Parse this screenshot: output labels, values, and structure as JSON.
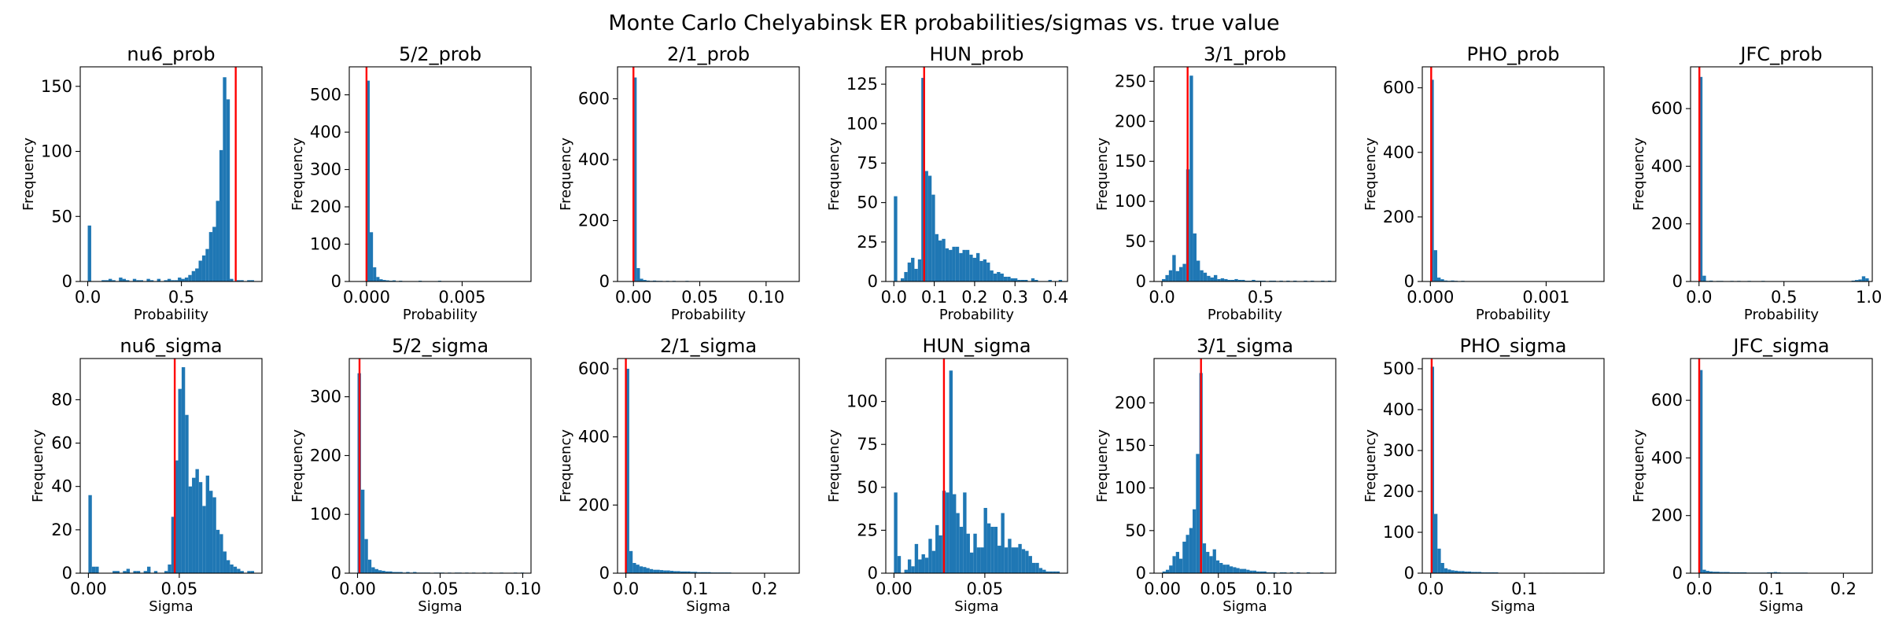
{
  "figure": {
    "title": "Monte Carlo Chelyabinsk ER probabilities/sigmas vs. true value"
  },
  "style": {
    "bar_color": "#1f77b4",
    "truth_line_color": "#ff0000"
  },
  "chart_data": [
    {
      "type": "bar",
      "title": "nu6_prob",
      "xlabel": "Probability",
      "ylabel": "Frequency",
      "xlim": [
        -0.04,
        0.93
      ],
      "ylim": [
        0,
        165
      ],
      "xticks": [
        0.0,
        0.5
      ],
      "yticks": [
        0,
        50,
        100,
        150
      ],
      "true_value": 0.79,
      "bin_start": 0.0,
      "bin_width": 0.0185,
      "counts": [
        43,
        0,
        0,
        0,
        1,
        1,
        2,
        1,
        0,
        3,
        2,
        1,
        0,
        2,
        1,
        1,
        0,
        2,
        1,
        0,
        2,
        0,
        1,
        2,
        1,
        1,
        3,
        2,
        3,
        5,
        8,
        10,
        16,
        20,
        25,
        38,
        42,
        62,
        101,
        157,
        140,
        2,
        0,
        1,
        1,
        0,
        1,
        1
      ]
    },
    {
      "type": "bar",
      "title": "5/2_prob",
      "xlabel": "Probability",
      "ylabel": "Frequency",
      "xlim": [
        -0.0009,
        0.0086
      ],
      "ylim": [
        0,
        575
      ],
      "xticks": [
        0.0,
        0.005
      ],
      "yticks": [
        0,
        100,
        200,
        300,
        400,
        500
      ],
      "true_value": 0.0,
      "bin_start": 0.0,
      "bin_width": 0.00017,
      "counts": [
        538,
        132,
        38,
        12,
        6,
        4,
        3,
        2,
        3,
        1,
        2,
        1,
        1,
        0,
        1,
        1,
        2,
        1,
        0,
        1,
        1,
        0,
        2,
        1,
        0,
        1,
        1,
        0,
        1,
        0,
        1,
        1,
        0,
        1,
        1,
        0,
        0,
        1,
        0,
        1,
        0,
        0,
        1,
        0,
        0,
        1,
        0,
        0,
        1
      ]
    },
    {
      "type": "bar",
      "title": "2/1_prob",
      "xlabel": "Probability",
      "ylabel": "Frequency",
      "xlim": [
        -0.012,
        0.125
      ],
      "ylim": [
        0,
        705
      ],
      "xticks": [
        0.0,
        0.05,
        0.1
      ],
      "yticks": [
        0,
        200,
        400,
        600
      ],
      "true_value": 0.0,
      "bin_start": 0.0,
      "bin_width": 0.00245,
      "counts": [
        670,
        44,
        9,
        5,
        3,
        2,
        3,
        2,
        2,
        1,
        2,
        1,
        2,
        1,
        1,
        1,
        2,
        1,
        0,
        1,
        1,
        1,
        0,
        1,
        1,
        1,
        0,
        1,
        1,
        0,
        1,
        0,
        1,
        1,
        0,
        0,
        1,
        0,
        1,
        0,
        0,
        1,
        0,
        0,
        1,
        0,
        0,
        0,
        1
      ]
    },
    {
      "type": "bar",
      "title": "HUN_prob",
      "xlabel": "Probability",
      "ylabel": "Frequency",
      "xlim": [
        -0.02,
        0.43
      ],
      "ylim": [
        0,
        136
      ],
      "xticks": [
        0.0,
        0.1,
        0.2,
        0.3,
        0.4
      ],
      "yticks": [
        0,
        25,
        50,
        75,
        100,
        125
      ],
      "true_value": 0.075,
      "bin_start": 0.0,
      "bin_width": 0.0085,
      "counts": [
        54,
        0,
        2,
        6,
        12,
        15,
        8,
        14,
        129,
        70,
        67,
        55,
        30,
        26,
        27,
        21,
        20,
        22,
        22,
        18,
        20,
        20,
        17,
        15,
        18,
        13,
        14,
        12,
        7,
        5,
        6,
        5,
        3,
        3,
        2,
        2,
        1,
        1,
        1,
        0,
        2,
        1,
        0,
        0,
        0,
        1,
        0,
        0,
        1
      ]
    },
    {
      "type": "bar",
      "title": "3/1_prob",
      "xlabel": "Probability",
      "ylabel": "Frequency",
      "xlim": [
        -0.04,
        0.88
      ],
      "ylim": [
        0,
        268
      ],
      "xticks": [
        0.0,
        0.5
      ],
      "yticks": [
        0,
        50,
        100,
        150,
        200,
        250
      ],
      "true_value": 0.13,
      "bin_start": 0.0,
      "bin_width": 0.0175,
      "counts": [
        3,
        8,
        14,
        33,
        13,
        18,
        22,
        140,
        257,
        60,
        26,
        14,
        11,
        7,
        5,
        8,
        3,
        4,
        3,
        2,
        2,
        3,
        2,
        2,
        1,
        1,
        2,
        1,
        1,
        1,
        0,
        1,
        1,
        0,
        1,
        0,
        1,
        0,
        1,
        0,
        0,
        1,
        0,
        1,
        0,
        0,
        1,
        0,
        1
      ]
    },
    {
      "type": "bar",
      "title": "PHO_prob",
      "xlabel": "Probability",
      "ylabel": "Frequency",
      "xlim": [
        -7e-05,
        0.0015
      ],
      "ylim": [
        0,
        665
      ],
      "xticks": [
        0.0,
        0.001
      ],
      "yticks": [
        0,
        200,
        400,
        600
      ],
      "true_value": 6.8e-06,
      "bin_start": 0.0,
      "bin_width": 2.95e-05,
      "counts": [
        625,
        97,
        12,
        7,
        3,
        2,
        3,
        2,
        1,
        2,
        1,
        1,
        0,
        1,
        1,
        0,
        1,
        0,
        0,
        1,
        0,
        0,
        1,
        0,
        0,
        1,
        0,
        0,
        0,
        1,
        0,
        0,
        1,
        0,
        0,
        0,
        1,
        0,
        0,
        0,
        1,
        0,
        0,
        0,
        0,
        0,
        0,
        0,
        1
      ]
    },
    {
      "type": "bar",
      "title": "JFC_prob",
      "xlabel": "Probability",
      "ylabel": "Frequency",
      "xlim": [
        -0.05,
        1.02
      ],
      "ylim": [
        0,
        745
      ],
      "xticks": [
        0.0,
        0.5,
        1.0
      ],
      "yticks": [
        0,
        200,
        400,
        600
      ],
      "true_value": 0.002,
      "bin_start": 0.0,
      "bin_width": 0.0204,
      "counts": [
        710,
        20,
        2,
        3,
        1,
        2,
        2,
        1,
        1,
        2,
        1,
        2,
        1,
        1,
        2,
        1,
        1,
        1,
        2,
        1,
        1,
        1,
        0,
        1,
        1,
        1,
        1,
        1,
        0,
        1,
        1,
        0,
        1,
        1,
        0,
        1,
        1,
        0,
        1,
        1,
        0,
        1,
        1,
        1,
        3,
        5,
        7,
        18,
        11
      ]
    },
    {
      "type": "bar",
      "title": "nu6_sigma",
      "xlabel": "Sigma",
      "ylabel": "Frequency",
      "xlim": [
        -0.0045,
        0.0955
      ],
      "ylim": [
        0,
        99
      ],
      "xticks": [
        0.0,
        0.05
      ],
      "yticks": [
        0,
        20,
        40,
        60,
        80
      ],
      "true_value": 0.0475,
      "bin_start": 0.0,
      "bin_width": 0.0019,
      "counts": [
        36,
        3,
        3,
        0,
        0,
        0,
        0,
        1,
        1,
        0,
        1,
        2,
        0,
        1,
        1,
        0,
        1,
        3,
        0,
        1,
        0,
        0,
        1,
        4,
        26,
        52,
        85,
        95,
        73,
        40,
        44,
        48,
        42,
        31,
        45,
        38,
        35,
        20,
        18,
        10,
        6,
        4,
        3,
        2,
        1,
        0,
        1,
        1
      ]
    },
    {
      "type": "bar",
      "title": "5/2_sigma",
      "xlabel": "Sigma",
      "ylabel": "Frequency",
      "xlim": [
        -0.005,
        0.105
      ],
      "ylim": [
        0,
        365
      ],
      "xticks": [
        0.0,
        0.05,
        0.1
      ],
      "yticks": [
        0,
        100,
        200,
        300
      ],
      "true_value": 0.0012,
      "bin_start": 0.0,
      "bin_width": 0.0021,
      "counts": [
        340,
        142,
        58,
        23,
        10,
        7,
        5,
        4,
        3,
        3,
        2,
        2,
        2,
        1,
        2,
        1,
        2,
        1,
        1,
        1,
        1,
        0,
        1,
        1,
        1,
        0,
        1,
        0,
        1,
        1,
        0,
        1,
        0,
        1,
        0,
        0,
        1,
        0,
        1,
        0,
        0,
        1,
        0,
        0,
        0,
        1,
        0,
        1
      ]
    },
    {
      "type": "bar",
      "title": "2/1_sigma",
      "xlabel": "Sigma",
      "ylabel": "Frequency",
      "xlim": [
        -0.012,
        0.25
      ],
      "ylim": [
        0,
        630
      ],
      "xticks": [
        0.0,
        0.1,
        0.2
      ],
      "yticks": [
        0,
        200,
        400,
        600
      ],
      "true_value": 0.0,
      "bin_start": 0.0,
      "bin_width": 0.0049,
      "counts": [
        600,
        65,
        30,
        25,
        20,
        18,
        15,
        12,
        10,
        10,
        9,
        8,
        8,
        7,
        6,
        6,
        5,
        5,
        5,
        4,
        4,
        3,
        3,
        3,
        3,
        2,
        2,
        2,
        2,
        2,
        2,
        1,
        1,
        1,
        1,
        1,
        1,
        1,
        1,
        1,
        0,
        1,
        0,
        1,
        0,
        1,
        0,
        1,
        1
      ]
    },
    {
      "type": "bar",
      "title": "HUN_sigma",
      "xlabel": "Sigma",
      "ylabel": "Frequency",
      "xlim": [
        -0.0045,
        0.0955
      ],
      "ylim": [
        0,
        125
      ],
      "xticks": [
        0.0,
        0.05
      ],
      "yticks": [
        0,
        25,
        50,
        75,
        100
      ],
      "true_value": 0.0275,
      "bin_start": 0.0,
      "bin_width": 0.0019,
      "counts": [
        47,
        10,
        0,
        2,
        8,
        4,
        17,
        8,
        11,
        9,
        20,
        13,
        28,
        22,
        48,
        47,
        118,
        46,
        35,
        27,
        47,
        23,
        12,
        23,
        15,
        15,
        38,
        29,
        27,
        27,
        16,
        35,
        15,
        20,
        15,
        15,
        17,
        14,
        13,
        10,
        6,
        6,
        3,
        2,
        1,
        1,
        1,
        1
      ]
    },
    {
      "type": "bar",
      "title": "3/1_sigma",
      "xlabel": "Sigma",
      "ylabel": "Frequency",
      "xlim": [
        -0.0075,
        0.155
      ],
      "ylim": [
        0,
        252
      ],
      "xticks": [
        0.0,
        0.05,
        0.1
      ],
      "yticks": [
        0,
        50,
        100,
        150,
        200
      ],
      "true_value": 0.0345,
      "bin_start": 0.0,
      "bin_width": 0.003,
      "counts": [
        2,
        4,
        9,
        20,
        25,
        17,
        37,
        45,
        53,
        75,
        140,
        235,
        35,
        25,
        20,
        28,
        15,
        12,
        10,
        10,
        8,
        7,
        6,
        5,
        5,
        4,
        3,
        3,
        2,
        2,
        2,
        1,
        1,
        1,
        0,
        1,
        1,
        0,
        1,
        0,
        1,
        0,
        0,
        1,
        0,
        0,
        0,
        1
      ]
    },
    {
      "type": "bar",
      "title": "PHO_sigma",
      "xlabel": "Sigma",
      "ylabel": "Frequency",
      "xlim": [
        -0.009,
        0.185
      ],
      "ylim": [
        0,
        525
      ],
      "xticks": [
        0.0,
        0.1
      ],
      "yticks": [
        0,
        100,
        200,
        300,
        400,
        500
      ],
      "true_value": 0.001,
      "bin_start": 0.0,
      "bin_width": 0.0036,
      "counts": [
        505,
        145,
        60,
        25,
        12,
        9,
        7,
        6,
        5,
        5,
        4,
        4,
        3,
        3,
        3,
        2,
        2,
        2,
        2,
        2,
        1,
        1,
        1,
        1,
        1,
        1,
        1,
        1,
        0,
        1,
        1,
        0,
        1,
        0,
        1,
        0,
        1,
        0,
        0,
        1,
        0,
        0,
        1,
        0,
        0,
        0,
        1,
        0,
        1
      ]
    },
    {
      "type": "bar",
      "title": "JFC_sigma",
      "xlabel": "Sigma",
      "ylabel": "Frequency",
      "xlim": [
        -0.012,
        0.24
      ],
      "ylim": [
        0,
        745
      ],
      "xticks": [
        0.0,
        0.1,
        0.2
      ],
      "yticks": [
        0,
        200,
        400,
        600
      ],
      "true_value": 0.0,
      "bin_start": 0.0,
      "bin_width": 0.0047,
      "counts": [
        705,
        12,
        8,
        6,
        5,
        5,
        4,
        4,
        4,
        3,
        3,
        3,
        3,
        3,
        2,
        2,
        2,
        2,
        2,
        2,
        3,
        3,
        4,
        3,
        2,
        2,
        2,
        2,
        2,
        2,
        2,
        2,
        1,
        1,
        1,
        1,
        1,
        1,
        1,
        1,
        1,
        1,
        1,
        1,
        1,
        1,
        1,
        1
      ]
    }
  ]
}
